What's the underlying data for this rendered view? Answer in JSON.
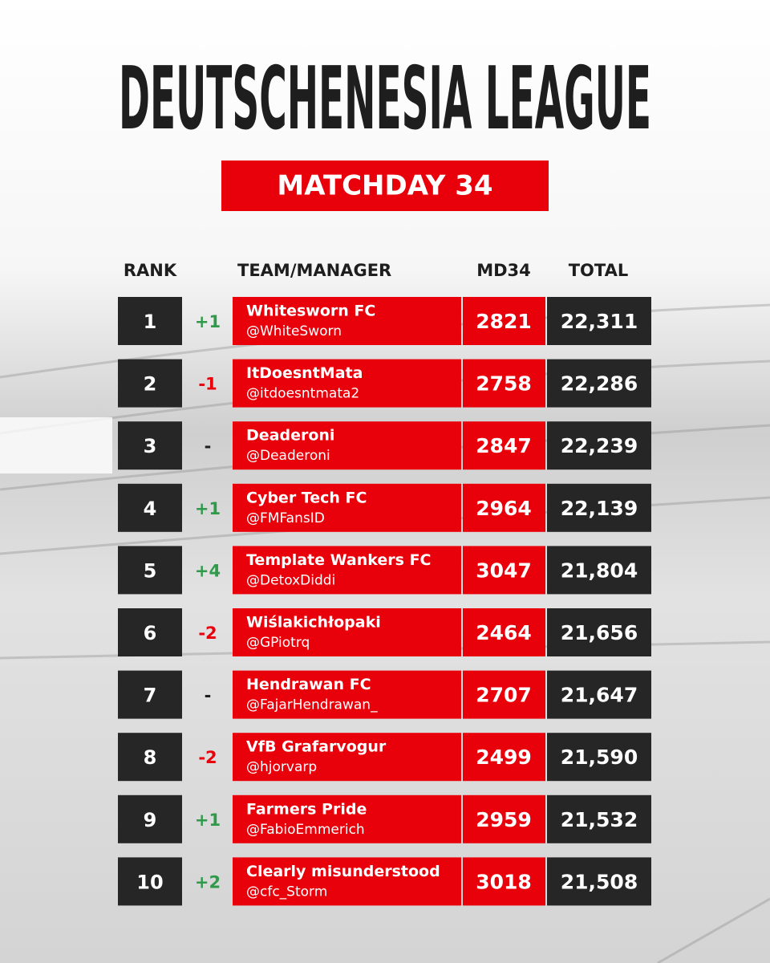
{
  "header": {
    "title": "DEUTSCHENESIA LEAGUE",
    "subtitle": "MATCHDAY 34"
  },
  "table": {
    "columns": [
      "RANK",
      "TEAM/MANAGER",
      "MD34",
      "TOTAL"
    ],
    "rows": [
      {
        "rank": "1",
        "change": "+1",
        "team": "Whitesworn FC",
        "manager": "@WhiteSworn",
        "md34": "2821",
        "total": "22,311"
      },
      {
        "rank": "2",
        "change": "-1",
        "team": "ItDoesntMata",
        "manager": "@itdoesntmata2",
        "md34": "2758",
        "total": "22,286"
      },
      {
        "rank": "3",
        "change": "-",
        "team": "Deaderoni",
        "manager": "@Deaderoni",
        "md34": "2847",
        "total": "22,239"
      },
      {
        "rank": "4",
        "change": "+1",
        "team": "Cyber Tech FC",
        "manager": "@FMFansID",
        "md34": "2964",
        "total": "22,139"
      },
      {
        "rank": "5",
        "change": "+4",
        "team": "Template Wankers FC",
        "manager": "@DetoxDiddi",
        "md34": "3047",
        "total": "21,804"
      },
      {
        "rank": "6",
        "change": "-2",
        "team": "Wiślakichłopaki",
        "manager": "@GPiotrq",
        "md34": "2464",
        "total": "21,656"
      },
      {
        "rank": "7",
        "change": "-",
        "team": "Hendrawan FC",
        "manager": "@FajarHendrawan_",
        "md34": "2707",
        "total": "21,647"
      },
      {
        "rank": "8",
        "change": "-2",
        "team": "VfB Grafarvogur",
        "manager": "@hjorvarp",
        "md34": "2499",
        "total": "21,590"
      },
      {
        "rank": "9",
        "change": "+1",
        "team": "Farmers Pride",
        "manager": "@FabioEmmerich",
        "md34": "2959",
        "total": "21,532"
      },
      {
        "rank": "10",
        "change": "+2",
        "team": "Clearly misunderstood",
        "manager": "@cfc_Storm",
        "md34": "3018",
        "total": "21,508"
      }
    ]
  }
}
